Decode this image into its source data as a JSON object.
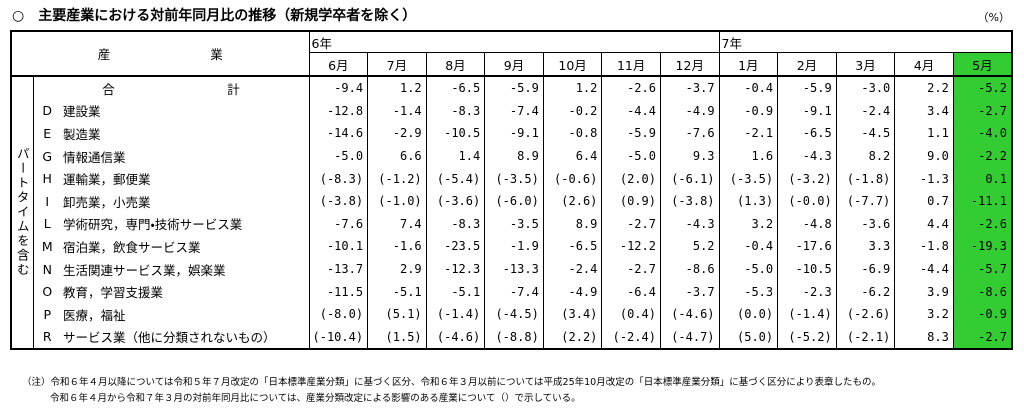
{
  "title": "○　主要産業における対前年同月比の推移（新規学卒者を除く）",
  "unit": "（%）",
  "table": {
    "header": {
      "industry": "産　　　　　　　　業",
      "years": [
        {
          "label": "6年",
          "months": [
            "6月",
            "7月",
            "8月",
            "9月",
            "10月",
            "11月",
            "12月"
          ]
        },
        {
          "label": "7年",
          "months": [
            "1月",
            "2月",
            "3月",
            "4月",
            "5月"
          ]
        }
      ]
    },
    "side_label": "パートタイムを含む",
    "total": {
      "name": "合　　　　　　　　　計",
      "values": [
        "-9.4",
        "1.2",
        "-6.5",
        "-5.9",
        "1.2",
        "-2.6",
        "-3.7",
        "-0.4",
        "-5.9",
        "-3.0",
        "2.2",
        "-5.2"
      ]
    },
    "rows": [
      {
        "code": "D",
        "name": "建設業",
        "values": [
          "-12.8",
          "-1.4",
          "-8.3",
          "-7.4",
          "-0.2",
          "-4.4",
          "-4.9",
          "-0.9",
          "-9.1",
          "-2.4",
          "3.4",
          "-2.7"
        ]
      },
      {
        "code": "E",
        "name": "製造業",
        "values": [
          "-14.6",
          "-2.9",
          "-10.5",
          "-9.1",
          "-0.8",
          "-5.9",
          "-7.6",
          "-2.1",
          "-6.5",
          "-4.5",
          "1.1",
          "-4.0"
        ]
      },
      {
        "code": "G",
        "name": "情報通信業",
        "values": [
          "-5.0",
          "6.6",
          "1.4",
          "8.9",
          "6.4",
          "-5.0",
          "9.3",
          "1.6",
          "-4.3",
          "8.2",
          "9.0",
          "-2.2"
        ]
      },
      {
        "code": "H",
        "name": "運輸業，郵便業",
        "values": [
          "(-8.3)",
          "(-1.2)",
          "(-5.4)",
          "(-3.5)",
          "(-0.6)",
          "(2.0)",
          "(-6.1)",
          "(-3.5)",
          "(-3.2)",
          "(-1.8)",
          "-1.3",
          "0.1"
        ]
      },
      {
        "code": "I",
        "name": "卸売業，小売業",
        "values": [
          "(-3.8)",
          "(-1.0)",
          "(-3.6)",
          "(-6.0)",
          "(2.6)",
          "(0.9)",
          "(-3.8)",
          "(1.3)",
          "(-0.0)",
          "(-7.7)",
          "0.7",
          "-11.1"
        ]
      },
      {
        "code": "L",
        "name": "学術研究，専門・技術サービス業",
        "values": [
          "-7.6",
          "7.4",
          "-8.3",
          "-3.5",
          "8.9",
          "-2.7",
          "-4.3",
          "3.2",
          "-4.8",
          "-3.6",
          "4.4",
          "-2.6"
        ]
      },
      {
        "code": "M",
        "name": "宿泊業，飲食サービス業",
        "values": [
          "-10.1",
          "-1.6",
          "-23.5",
          "-1.9",
          "-6.5",
          "-12.2",
          "5.2",
          "-0.4",
          "-17.6",
          "3.3",
          "-1.8",
          "-19.3"
        ]
      },
      {
        "code": "N",
        "name": "生活関連サービス業，娯楽業",
        "values": [
          "-13.7",
          "2.9",
          "-12.3",
          "-13.3",
          "-2.4",
          "-2.7",
          "-8.6",
          "-5.0",
          "-10.5",
          "-6.9",
          "-4.4",
          "-5.7"
        ]
      },
      {
        "code": "O",
        "name": "教育，学習支援業",
        "values": [
          "-11.5",
          "-5.1",
          "-5.1",
          "-7.4",
          "-4.9",
          "-6.4",
          "-3.7",
          "-5.3",
          "-2.3",
          "-6.2",
          "3.9",
          "-8.6"
        ]
      },
      {
        "code": "P",
        "name": "医療，福祉",
        "values": [
          "(-8.0)",
          "(5.1)",
          "(-1.4)",
          "(-4.5)",
          "(3.4)",
          "(0.4)",
          "(-4.6)",
          "(0.0)",
          "(-1.4)",
          "(-2.6)",
          "3.2",
          "-0.9"
        ]
      },
      {
        "code": "R",
        "name": "サービス業（他に分類されないもの）",
        "values": [
          "(-10.4)",
          "(1.5)",
          "(-4.6)",
          "(-8.8)",
          "(2.2)",
          "(-2.4)",
          "(-4.7)",
          "(5.0)",
          "(-5.2)",
          "(-2.1)",
          "8.3",
          "-2.7"
        ]
      }
    ]
  },
  "notes": [
    "（注）令和６年４月以降については令和５年７月改定の「日本標準産業分類」に基づく区分、令和６年３月以前については平成25年10月改定の「日本標準産業分類」に基づく区分により表章したもの。",
    "令和６年４月から令和７年３月の対前年同月比については、産業分類改定による影響のある産業について（）で示している。"
  ]
}
